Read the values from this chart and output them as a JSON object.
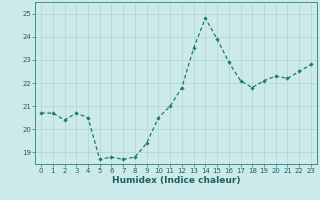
{
  "x": [
    0,
    1,
    2,
    3,
    4,
    5,
    6,
    7,
    8,
    9,
    10,
    11,
    12,
    13,
    14,
    15,
    16,
    17,
    18,
    19,
    20,
    21,
    22,
    23
  ],
  "y": [
    20.7,
    20.7,
    20.4,
    20.7,
    20.5,
    18.7,
    18.8,
    18.7,
    18.8,
    19.4,
    20.5,
    21.0,
    21.8,
    23.5,
    24.8,
    23.9,
    22.9,
    22.1,
    21.8,
    22.1,
    22.3,
    22.2,
    22.5,
    22.8
  ],
  "line_color": "#1a7a6e",
  "marker": "D",
  "marker_size": 1.8,
  "bg_color": "#cdeaea",
  "grid_color": "#afd4d4",
  "xlabel": "Humidex (Indice chaleur)",
  "ylim": [
    18.5,
    25.5
  ],
  "yticks": [
    19,
    20,
    21,
    22,
    23,
    24,
    25
  ],
  "xticks": [
    0,
    1,
    2,
    3,
    4,
    5,
    6,
    7,
    8,
    9,
    10,
    11,
    12,
    13,
    14,
    15,
    16,
    17,
    18,
    19,
    20,
    21,
    22,
    23
  ],
  "tick_color": "#1a6060",
  "tick_fontsize": 5.0,
  "xlabel_fontsize": 6.5,
  "axis_color": "#3a9090",
  "linewidth": 0.9
}
